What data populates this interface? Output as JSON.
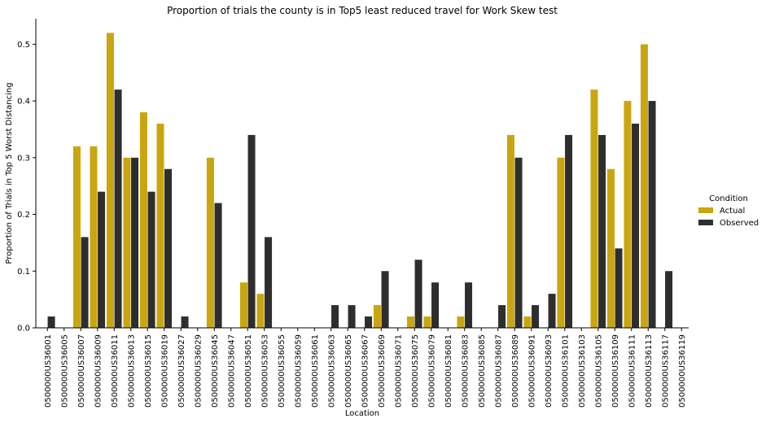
{
  "chart_data": {
    "type": "bar",
    "title": "Proportion of trials the county is in Top5 least reduced travel for Work Skew test",
    "xlabel": "Location",
    "ylabel": "Proportion of Trials in Top 5 Worst Distancing",
    "ylim": [
      0,
      0.545
    ],
    "yticks": [
      0.0,
      0.1,
      0.2,
      0.3,
      0.4,
      0.5
    ],
    "ytick_labels": [
      "0.0",
      "0.1",
      "0.2",
      "0.3",
      "0.4",
      "0.5"
    ],
    "categories": [
      "0500000US36001",
      "0500000US36005",
      "0500000US36007",
      "0500000US36009",
      "0500000US36011",
      "0500000US36013",
      "0500000US36015",
      "0500000US36019",
      "0500000US36027",
      "0500000US36029",
      "0500000US36045",
      "0500000US36047",
      "0500000US36051",
      "0500000US36053",
      "0500000US36055",
      "0500000US36059",
      "0500000US36061",
      "0500000US36063",
      "0500000US36065",
      "0500000US36067",
      "0500000US36069",
      "0500000US36071",
      "0500000US36075",
      "0500000US36079",
      "0500000US36081",
      "0500000US36083",
      "0500000US36085",
      "0500000US36087",
      "0500000US36089",
      "0500000US36091",
      "0500000US36093",
      "0500000US36101",
      "0500000US36103",
      "0500000US36105",
      "0500000US36109",
      "0500000US36111",
      "0500000US36113",
      "0500000US36117",
      "0500000US36119"
    ],
    "series": [
      {
        "name": "Actual",
        "color": "#c9a60f",
        "values": [
          0,
          0,
          0.32,
          0.32,
          0.52,
          0.3,
          0.38,
          0.36,
          0,
          0,
          0.3,
          0,
          0.08,
          0.06,
          0,
          0,
          0,
          0,
          0,
          0,
          0.04,
          0,
          0.02,
          0.02,
          0,
          0.02,
          0,
          0,
          0.34,
          0.02,
          0,
          0.3,
          0,
          0.42,
          0.28,
          0.4,
          0.5,
          0,
          0
        ]
      },
      {
        "name": "Observed",
        "color": "#2e2e2e",
        "values": [
          0.02,
          0,
          0.16,
          0.24,
          0.42,
          0.3,
          0.24,
          0.28,
          0.02,
          0,
          0.22,
          0,
          0.34,
          0.16,
          0,
          0,
          0,
          0.04,
          0.04,
          0.02,
          0.1,
          0,
          0.12,
          0.08,
          0,
          0.08,
          0,
          0.04,
          0.3,
          0.04,
          0.06,
          0.34,
          0,
          0.34,
          0.14,
          0.36,
          0.4,
          0.1,
          0
        ]
      }
    ],
    "legend": {
      "title": "Condition",
      "placement": "right",
      "entries": [
        "Actual",
        "Observed"
      ]
    },
    "grid": false
  }
}
